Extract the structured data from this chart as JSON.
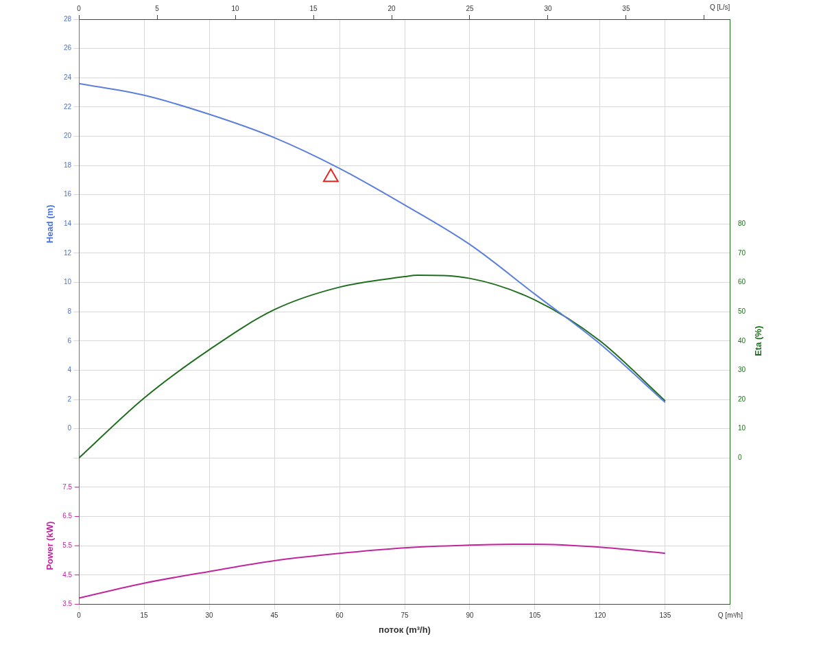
{
  "chart_data": {
    "type": "line",
    "xlabel": "поток (m³/h)",
    "x2label": "Q [L/s]",
    "ylabel": "Head (m)",
    "y2label": "Eta (%)",
    "y3label": "Power (kW)",
    "xlim": [
      0,
      150
    ],
    "xticks": [
      0,
      15,
      30,
      45,
      60,
      75,
      90,
      105,
      120,
      135,
      {
        "value": 150,
        "label": "Q [m³/h]"
      }
    ],
    "x2lim": [
      0,
      41.667
    ],
    "x2ticks": [
      0,
      5,
      10,
      15,
      20,
      25,
      30,
      35,
      {
        "value": 40,
        "label": null
      }
    ],
    "ylim": [
      -12,
      28
    ],
    "yticks": [
      {
        "value": -12,
        "label": null
      },
      {
        "value": -10,
        "label": null
      },
      {
        "value": -8,
        "label": null
      },
      {
        "value": -6,
        "label": null
      },
      {
        "value": -4,
        "label": null
      },
      {
        "value": -2,
        "label": null
      },
      0,
      2,
      4,
      6,
      8,
      10,
      12,
      14,
      16,
      18,
      20,
      22,
      24,
      26,
      28
    ],
    "y2lim": [
      -50,
      150
    ],
    "y2ticks": [
      0,
      10,
      20,
      30,
      40,
      50,
      60,
      70,
      80
    ],
    "y3lim": [
      3.5,
      23.5
    ],
    "y3ticks": [
      3.5,
      4.5,
      5.5,
      6.5,
      7.5
    ],
    "grid": true,
    "legend": false,
    "marker": "none",
    "line_style": "solid",
    "series": [
      {
        "color": "#5b7fdc",
        "axis": "y",
        "x": [
          0,
          15,
          30,
          45,
          60,
          75,
          90,
          105,
          120,
          135
        ],
        "values": [
          23.6,
          22.8,
          21.5,
          19.9,
          17.8,
          15.3,
          12.6,
          9.2,
          5.8,
          1.8
        ]
      },
      {
        "color": "#1e6e1e",
        "axis": "y2",
        "x": [
          0,
          15,
          30,
          45,
          60,
          75,
          78,
          90,
          105,
          120,
          135
        ],
        "values": [
          0,
          20.5,
          37,
          50.7,
          58.4,
          62,
          62.5,
          61.4,
          54,
          40,
          19.5
        ]
      },
      {
        "color": "#c0259c",
        "axis": "y3",
        "x": [
          0,
          15,
          30,
          45,
          60,
          75,
          90,
          100,
          105,
          120,
          135
        ],
        "values": [
          3.71,
          4.22,
          4.62,
          4.99,
          5.24,
          5.43,
          5.52,
          5.55,
          5.55,
          5.45,
          5.24
        ]
      },
      {
        "type": "scatter",
        "marker": "triangle",
        "color": "#e8251e",
        "axis": "y",
        "x": [
          58
        ],
        "values": [
          17.2
        ]
      }
    ]
  }
}
